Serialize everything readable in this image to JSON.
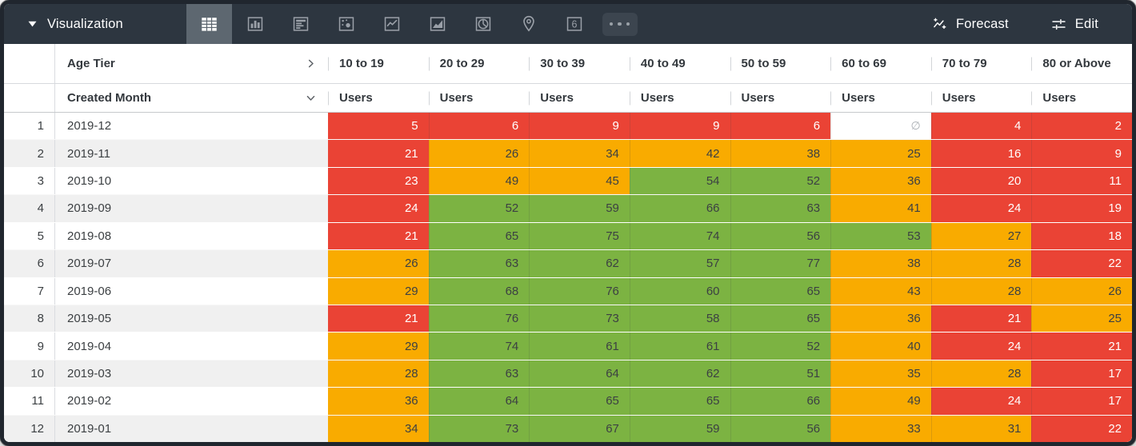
{
  "toolbar": {
    "title": "Visualization",
    "forecast_label": "Forecast",
    "edit_label": "Edit",
    "single_value_icon_text": "6",
    "chart_type_icons": [
      "table",
      "bar",
      "horizontal-bar",
      "scatter",
      "line",
      "area",
      "pie",
      "map-pin",
      "single-value",
      "more"
    ],
    "selected_chart_type": "table"
  },
  "colors": {
    "red": "#EA4335",
    "amber": "#F9AB00",
    "green": "#7CB342",
    "none": "#FFFFFF",
    "toolbar_bg": "#2D3640",
    "selected_tab_bg": "#5D6770"
  },
  "table": {
    "pivot_field": "Age Tier",
    "row_field": "Created Month",
    "measure_label": "Users",
    "empty_symbol": "∅",
    "columns": [
      "10 to 19",
      "20 to 29",
      "30 to 39",
      "40 to 49",
      "50 to 59",
      "60 to 69",
      "70 to 79",
      "80 or Above"
    ],
    "rows": [
      {
        "index": "1",
        "month": "2019-12",
        "cells": [
          {
            "v": "5",
            "c": "red"
          },
          {
            "v": "6",
            "c": "red"
          },
          {
            "v": "9",
            "c": "red"
          },
          {
            "v": "9",
            "c": "red"
          },
          {
            "v": "6",
            "c": "red"
          },
          {
            "v": null,
            "c": "none"
          },
          {
            "v": "4",
            "c": "red"
          },
          {
            "v": "2",
            "c": "red"
          }
        ]
      },
      {
        "index": "2",
        "month": "2019-11",
        "cells": [
          {
            "v": "21",
            "c": "red"
          },
          {
            "v": "26",
            "c": "amber"
          },
          {
            "v": "34",
            "c": "amber"
          },
          {
            "v": "42",
            "c": "amber"
          },
          {
            "v": "38",
            "c": "amber"
          },
          {
            "v": "25",
            "c": "amber"
          },
          {
            "v": "16",
            "c": "red"
          },
          {
            "v": "9",
            "c": "red"
          }
        ]
      },
      {
        "index": "3",
        "month": "2019-10",
        "cells": [
          {
            "v": "23",
            "c": "red"
          },
          {
            "v": "49",
            "c": "amber"
          },
          {
            "v": "45",
            "c": "amber"
          },
          {
            "v": "54",
            "c": "green"
          },
          {
            "v": "52",
            "c": "green"
          },
          {
            "v": "36",
            "c": "amber"
          },
          {
            "v": "20",
            "c": "red"
          },
          {
            "v": "11",
            "c": "red"
          }
        ]
      },
      {
        "index": "4",
        "month": "2019-09",
        "cells": [
          {
            "v": "24",
            "c": "red"
          },
          {
            "v": "52",
            "c": "green"
          },
          {
            "v": "59",
            "c": "green"
          },
          {
            "v": "66",
            "c": "green"
          },
          {
            "v": "63",
            "c": "green"
          },
          {
            "v": "41",
            "c": "amber"
          },
          {
            "v": "24",
            "c": "red"
          },
          {
            "v": "19",
            "c": "red"
          }
        ]
      },
      {
        "index": "5",
        "month": "2019-08",
        "cells": [
          {
            "v": "21",
            "c": "red"
          },
          {
            "v": "65",
            "c": "green"
          },
          {
            "v": "75",
            "c": "green"
          },
          {
            "v": "74",
            "c": "green"
          },
          {
            "v": "56",
            "c": "green"
          },
          {
            "v": "53",
            "c": "green"
          },
          {
            "v": "27",
            "c": "amber"
          },
          {
            "v": "18",
            "c": "red"
          }
        ]
      },
      {
        "index": "6",
        "month": "2019-07",
        "cells": [
          {
            "v": "26",
            "c": "amber"
          },
          {
            "v": "63",
            "c": "green"
          },
          {
            "v": "62",
            "c": "green"
          },
          {
            "v": "57",
            "c": "green"
          },
          {
            "v": "77",
            "c": "green"
          },
          {
            "v": "38",
            "c": "amber"
          },
          {
            "v": "28",
            "c": "amber"
          },
          {
            "v": "22",
            "c": "red"
          }
        ]
      },
      {
        "index": "7",
        "month": "2019-06",
        "cells": [
          {
            "v": "29",
            "c": "amber"
          },
          {
            "v": "68",
            "c": "green"
          },
          {
            "v": "76",
            "c": "green"
          },
          {
            "v": "60",
            "c": "green"
          },
          {
            "v": "65",
            "c": "green"
          },
          {
            "v": "43",
            "c": "amber"
          },
          {
            "v": "28",
            "c": "amber"
          },
          {
            "v": "26",
            "c": "amber"
          }
        ]
      },
      {
        "index": "8",
        "month": "2019-05",
        "cells": [
          {
            "v": "21",
            "c": "red"
          },
          {
            "v": "76",
            "c": "green"
          },
          {
            "v": "73",
            "c": "green"
          },
          {
            "v": "58",
            "c": "green"
          },
          {
            "v": "65",
            "c": "green"
          },
          {
            "v": "36",
            "c": "amber"
          },
          {
            "v": "21",
            "c": "red"
          },
          {
            "v": "25",
            "c": "amber"
          }
        ]
      },
      {
        "index": "9",
        "month": "2019-04",
        "cells": [
          {
            "v": "29",
            "c": "amber"
          },
          {
            "v": "74",
            "c": "green"
          },
          {
            "v": "61",
            "c": "green"
          },
          {
            "v": "61",
            "c": "green"
          },
          {
            "v": "52",
            "c": "green"
          },
          {
            "v": "40",
            "c": "amber"
          },
          {
            "v": "24",
            "c": "red"
          },
          {
            "v": "21",
            "c": "red"
          }
        ]
      },
      {
        "index": "10",
        "month": "2019-03",
        "cells": [
          {
            "v": "28",
            "c": "amber"
          },
          {
            "v": "63",
            "c": "green"
          },
          {
            "v": "64",
            "c": "green"
          },
          {
            "v": "62",
            "c": "green"
          },
          {
            "v": "51",
            "c": "green"
          },
          {
            "v": "35",
            "c": "amber"
          },
          {
            "v": "28",
            "c": "amber"
          },
          {
            "v": "17",
            "c": "red"
          }
        ]
      },
      {
        "index": "11",
        "month": "2019-02",
        "cells": [
          {
            "v": "36",
            "c": "amber"
          },
          {
            "v": "64",
            "c": "green"
          },
          {
            "v": "65",
            "c": "green"
          },
          {
            "v": "65",
            "c": "green"
          },
          {
            "v": "66",
            "c": "green"
          },
          {
            "v": "49",
            "c": "amber"
          },
          {
            "v": "24",
            "c": "red"
          },
          {
            "v": "17",
            "c": "red"
          }
        ]
      },
      {
        "index": "12",
        "month": "2019-01",
        "cells": [
          {
            "v": "34",
            "c": "amber"
          },
          {
            "v": "73",
            "c": "green"
          },
          {
            "v": "67",
            "c": "green"
          },
          {
            "v": "59",
            "c": "green"
          },
          {
            "v": "56",
            "c": "green"
          },
          {
            "v": "33",
            "c": "amber"
          },
          {
            "v": "31",
            "c": "amber"
          },
          {
            "v": "22",
            "c": "red"
          }
        ]
      }
    ]
  }
}
